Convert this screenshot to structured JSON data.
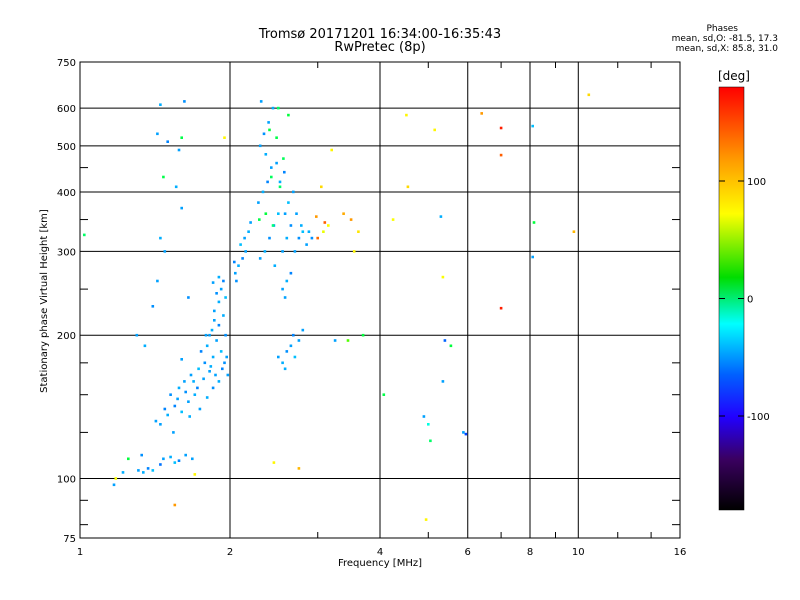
{
  "header": {
    "title_line1": "Tromsø 20171201 16:34:00-16:35:43",
    "title_line2": "RwPretec (8p)",
    "stats_heading": "Phases",
    "stats_o": "mean, sd,O: -81.5, 17.3",
    "stats_x": "mean, sd,X:  85.8, 31.0"
  },
  "colorbar": {
    "label": "[deg]",
    "range": [
      -180,
      180
    ],
    "ticks": [
      {
        "value": 100,
        "label": "100"
      },
      {
        "value": 0,
        "label": "0"
      },
      {
        "value": -100,
        "label": "-100"
      }
    ]
  },
  "chart_data": {
    "type": "scatter",
    "title": "Tromsø 20171201 16:34:00-16:35:43",
    "subtitle": "RwPretec (8p)",
    "xlabel": "Frequency [MHz]",
    "ylabel": "Stationary phase Virtual Height [km]",
    "x_scale": "log",
    "y_scale": "log",
    "xlim": [
      1,
      16
    ],
    "ylim": [
      75,
      750
    ],
    "x_ticks": [
      {
        "value": 1,
        "label": "1"
      },
      {
        "value": 2,
        "label": "2"
      },
      {
        "value": 4,
        "label": "4"
      },
      {
        "value": 6,
        "label": "6"
      },
      {
        "value": 8,
        "label": "8"
      },
      {
        "value": 10,
        "label": "10"
      },
      {
        "value": 16,
        "label": "16"
      }
    ],
    "x_minor_ticks": [
      3,
      5,
      7,
      9,
      12,
      14
    ],
    "y_ticks": [
      {
        "value": 75,
        "label": "75"
      },
      {
        "value": 100,
        "label": "100"
      },
      {
        "value": 200,
        "label": "200"
      },
      {
        "value": 300,
        "label": "300"
      },
      {
        "value": 400,
        "label": "400"
      },
      {
        "value": 500,
        "label": "500"
      },
      {
        "value": 600,
        "label": "600"
      },
      {
        "value": 750,
        "label": "750"
      }
    ],
    "y_minor_ticks": [
      80,
      90,
      125,
      150,
      175,
      250,
      350,
      450
    ],
    "grid": true,
    "color_dimension": "phase [deg]",
    "series": [
      {
        "points": [
          [
            1.31,
            104,
            -100
          ],
          [
            1.34,
            103,
            -95
          ],
          [
            1.37,
            105,
            -110
          ],
          [
            1.4,
            104,
            -90
          ],
          [
            1.33,
            112,
            -105
          ],
          [
            1.47,
            110,
            -100
          ],
          [
            1.52,
            111,
            -95
          ],
          [
            1.58,
            109,
            -110
          ],
          [
            1.63,
            112,
            -100
          ],
          [
            1.45,
            107,
            -115
          ],
          [
            1.55,
            108,
            -90
          ],
          [
            1.68,
            110,
            -100
          ],
          [
            1.22,
            103,
            -95
          ],
          [
            1.45,
            130,
            -100
          ],
          [
            1.5,
            136,
            -95
          ],
          [
            1.55,
            142,
            -110
          ],
          [
            1.6,
            138,
            -90
          ],
          [
            1.65,
            145,
            -100
          ],
          [
            1.52,
            150,
            -105
          ],
          [
            1.58,
            155,
            -95
          ],
          [
            1.62,
            160,
            -100
          ],
          [
            1.48,
            140,
            -110
          ],
          [
            1.7,
            150,
            -95
          ],
          [
            1.67,
            165,
            -100
          ],
          [
            1.73,
            170,
            -90
          ],
          [
            1.78,
            175,
            -105
          ],
          [
            1.82,
            168,
            -100
          ],
          [
            1.85,
            180,
            -95
          ],
          [
            1.6,
            178,
            -100
          ],
          [
            1.75,
            185,
            -110
          ],
          [
            1.8,
            190,
            -95
          ],
          [
            1.88,
            195,
            -100
          ],
          [
            1.92,
            185,
            -90
          ],
          [
            1.57,
            147,
            -100
          ],
          [
            1.63,
            152,
            -105
          ],
          [
            1.69,
            160,
            -95
          ],
          [
            1.72,
            155,
            -110
          ],
          [
            1.77,
            162,
            -100
          ],
          [
            1.83,
            172,
            -95
          ],
          [
            1.87,
            165,
            -100
          ],
          [
            1.95,
            175,
            -105
          ],
          [
            1.42,
            132,
            -100
          ],
          [
            1.9,
            160,
            -95
          ],
          [
            1.93,
            170,
            -110
          ],
          [
            1.97,
            180,
            -100
          ],
          [
            1.74,
            140,
            -100
          ],
          [
            1.8,
            148,
            -95
          ],
          [
            1.85,
            155,
            -105
          ],
          [
            1.98,
            165,
            -100
          ],
          [
            1.66,
            135,
            -95
          ],
          [
            1.54,
            125,
            -100
          ],
          [
            1.79,
            200,
            -100
          ],
          [
            1.84,
            205,
            -95
          ],
          [
            1.9,
            210,
            -110
          ],
          [
            1.86,
            215,
            -100
          ],
          [
            1.94,
            220,
            -95
          ],
          [
            1.82,
            200,
            -100
          ],
          [
            1.96,
            200,
            -105
          ],
          [
            1.86,
            225,
            -100
          ],
          [
            1.9,
            235,
            -95
          ],
          [
            1.88,
            245,
            -105
          ],
          [
            1.92,
            250,
            -100
          ],
          [
            1.96,
            240,
            -90
          ],
          [
            1.85,
            258,
            -100
          ],
          [
            1.9,
            265,
            -95
          ],
          [
            1.94,
            260,
            -110
          ],
          [
            2.05,
            270,
            -100
          ],
          [
            2.08,
            280,
            -95
          ],
          [
            2.12,
            290,
            -110
          ],
          [
            2.15,
            300,
            -100
          ],
          [
            2.1,
            310,
            -90
          ],
          [
            2.06,
            260,
            -105
          ],
          [
            2.14,
            320,
            -100
          ],
          [
            2.18,
            330,
            -95
          ],
          [
            2.2,
            345,
            -100
          ],
          [
            2.04,
            285,
            -110
          ],
          [
            2.3,
            290,
            -100
          ],
          [
            2.35,
            300,
            -95
          ],
          [
            2.4,
            320,
            -105
          ],
          [
            2.45,
            340,
            -100
          ],
          [
            2.5,
            360,
            -90
          ],
          [
            2.28,
            380,
            -100
          ],
          [
            2.33,
            400,
            -95
          ],
          [
            2.38,
            420,
            -110
          ],
          [
            2.42,
            450,
            -100
          ],
          [
            2.36,
            480,
            -95
          ],
          [
            2.3,
            500,
            -100
          ],
          [
            2.34,
            530,
            -105
          ],
          [
            2.39,
            560,
            -100
          ],
          [
            2.44,
            600,
            -95
          ],
          [
            2.31,
            620,
            -100
          ],
          [
            2.55,
            300,
            -100
          ],
          [
            2.6,
            320,
            -95
          ],
          [
            2.65,
            340,
            -105
          ],
          [
            2.58,
            360,
            -100
          ],
          [
            2.62,
            380,
            -90
          ],
          [
            2.68,
            400,
            -100
          ],
          [
            2.52,
            420,
            -95
          ],
          [
            2.57,
            440,
            -110
          ],
          [
            2.48,
            460,
            -100
          ],
          [
            2.46,
            280,
            -95
          ],
          [
            2.7,
            300,
            -100
          ],
          [
            2.75,
            320,
            -105
          ],
          [
            2.78,
            340,
            -95
          ],
          [
            2.72,
            360,
            -100
          ],
          [
            2.8,
            330,
            -90
          ],
          [
            2.85,
            310,
            -100
          ],
          [
            2.88,
            330,
            -95
          ],
          [
            2.92,
            320,
            -105
          ],
          [
            2.55,
            250,
            -100
          ],
          [
            2.6,
            260,
            -95
          ],
          [
            2.65,
            270,
            -110
          ],
          [
            2.58,
            240,
            -100
          ],
          [
            2.5,
            180,
            -100
          ],
          [
            2.55,
            175,
            -95
          ],
          [
            2.6,
            185,
            -105
          ],
          [
            2.65,
            190,
            -100
          ],
          [
            2.7,
            180,
            -90
          ],
          [
            2.75,
            195,
            -100
          ],
          [
            2.58,
            170,
            -95
          ],
          [
            2.68,
            200,
            -110
          ],
          [
            2.8,
            205,
            -100
          ],
          [
            2.4,
            540,
            -5
          ],
          [
            2.48,
            520,
            -10
          ],
          [
            2.42,
            430,
            -15
          ],
          [
            2.52,
            410,
            -20
          ],
          [
            2.36,
            360,
            -5
          ],
          [
            2.44,
            340,
            -25
          ],
          [
            2.29,
            350,
            -10
          ],
          [
            2.56,
            470,
            -15
          ],
          [
            2.62,
            580,
            -5
          ],
          [
            2.5,
            600,
            -20
          ],
          [
            1.3,
            200,
            -100
          ],
          [
            1.35,
            190,
            -95
          ],
          [
            1.4,
            230,
            -105
          ],
          [
            1.43,
            260,
            -100
          ],
          [
            1.45,
            320,
            -95
          ],
          [
            1.48,
            300,
            -100
          ],
          [
            1.56,
            410,
            -95
          ],
          [
            1.6,
            370,
            -100
          ],
          [
            1.65,
            240,
            -105
          ],
          [
            1.43,
            530,
            -100
          ],
          [
            1.5,
            510,
            -110
          ],
          [
            1.62,
            620,
            -105
          ],
          [
            1.45,
            610,
            -95
          ],
          [
            1.58,
            490,
            -100
          ],
          [
            1.17,
            97,
            -100
          ],
          [
            1.6,
            520,
            -10
          ],
          [
            1.47,
            430,
            -10
          ],
          [
            1.25,
            110,
            -5
          ],
          [
            1.02,
            325,
            -20
          ],
          [
            1.18,
            100,
            95
          ],
          [
            1.55,
            88,
            130
          ],
          [
            1.7,
            102,
            100
          ],
          [
            1.95,
            520,
            100
          ],
          [
            2.45,
            108,
            100
          ],
          [
            2.75,
            105,
            120
          ],
          [
            2.98,
            355,
            130
          ],
          [
            3.05,
            410,
            110
          ],
          [
            3.15,
            340,
            95
          ],
          [
            3.2,
            490,
            100
          ],
          [
            3.38,
            360,
            125
          ],
          [
            3.5,
            350,
            130
          ],
          [
            3.55,
            300,
            100
          ],
          [
            3.62,
            330,
            105
          ],
          [
            3.0,
            320,
            145
          ],
          [
            3.1,
            345,
            150
          ],
          [
            3.08,
            330,
            90
          ],
          [
            3.45,
            195,
            40
          ],
          [
            3.25,
            195,
            -100
          ],
          [
            3.7,
            200,
            -5
          ],
          [
            4.25,
            350,
            95
          ],
          [
            4.52,
            580,
            100
          ],
          [
            4.55,
            410,
            110
          ],
          [
            5.15,
            540,
            100
          ],
          [
            4.07,
            150,
            -10
          ],
          [
            4.9,
            135,
            -100
          ],
          [
            5.0,
            130,
            -60
          ],
          [
            5.05,
            120,
            -20
          ],
          [
            4.95,
            82,
            100
          ],
          [
            5.3,
            355,
            -95
          ],
          [
            5.35,
            265,
            95
          ],
          [
            5.4,
            195,
            -120
          ],
          [
            5.35,
            160,
            -100
          ],
          [
            5.55,
            190,
            -5
          ],
          [
            5.88,
            125,
            -100
          ],
          [
            5.95,
            124,
            -130
          ],
          [
            6.4,
            585,
            130
          ],
          [
            7.0,
            545,
            170
          ],
          [
            7.0,
            478,
            150
          ],
          [
            7.0,
            228,
            170
          ],
          [
            8.1,
            550,
            -90
          ],
          [
            8.15,
            345,
            -5
          ],
          [
            8.1,
            292,
            -100
          ],
          [
            9.8,
            330,
            120
          ],
          [
            10.5,
            640,
            110
          ]
        ]
      }
    ]
  }
}
